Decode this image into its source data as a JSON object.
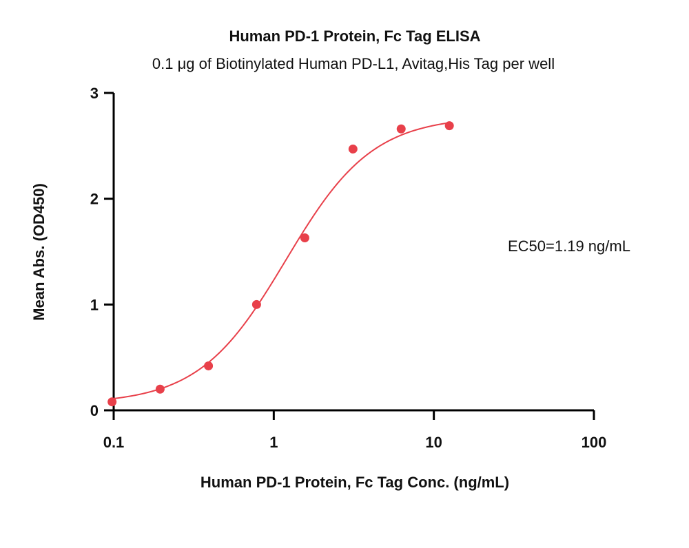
{
  "chart_data": {
    "type": "scatter",
    "title": "Human PD-1 Protein, Fc Tag ELISA",
    "subtitle": "0.1 μg of Biotinylated Human PD-L1, Avitag,His Tag per well",
    "xlabel": "Human PD-1 Protein, Fc Tag Conc. (ng/mL)",
    "ylabel": "Mean Abs. (OD450)",
    "x_scale": "log",
    "xlim": [
      0.1,
      100
    ],
    "ylim": [
      0,
      3
    ],
    "x_ticks": [
      0.1,
      1,
      10,
      100
    ],
    "x_tick_labels": [
      "0.1",
      "1",
      "10",
      "100"
    ],
    "y_ticks": [
      0,
      1,
      2,
      3
    ],
    "y_tick_labels": [
      "0",
      "1",
      "2",
      "3"
    ],
    "grid": false,
    "legend": "none",
    "color": "#e8404a",
    "series": [
      {
        "x": [
          0.0977,
          0.195,
          0.391,
          0.781,
          1.563,
          3.125,
          6.25,
          12.5
        ],
        "y": [
          0.08,
          0.2,
          0.42,
          1.0,
          1.63,
          2.47,
          2.66,
          2.69
        ]
      }
    ],
    "fit": {
      "model": "4PL",
      "bottom": 0.06,
      "top": 2.78,
      "ec50": 1.19,
      "hill": 1.6
    },
    "annotation": "EC50=1.19 ng/mL"
  }
}
